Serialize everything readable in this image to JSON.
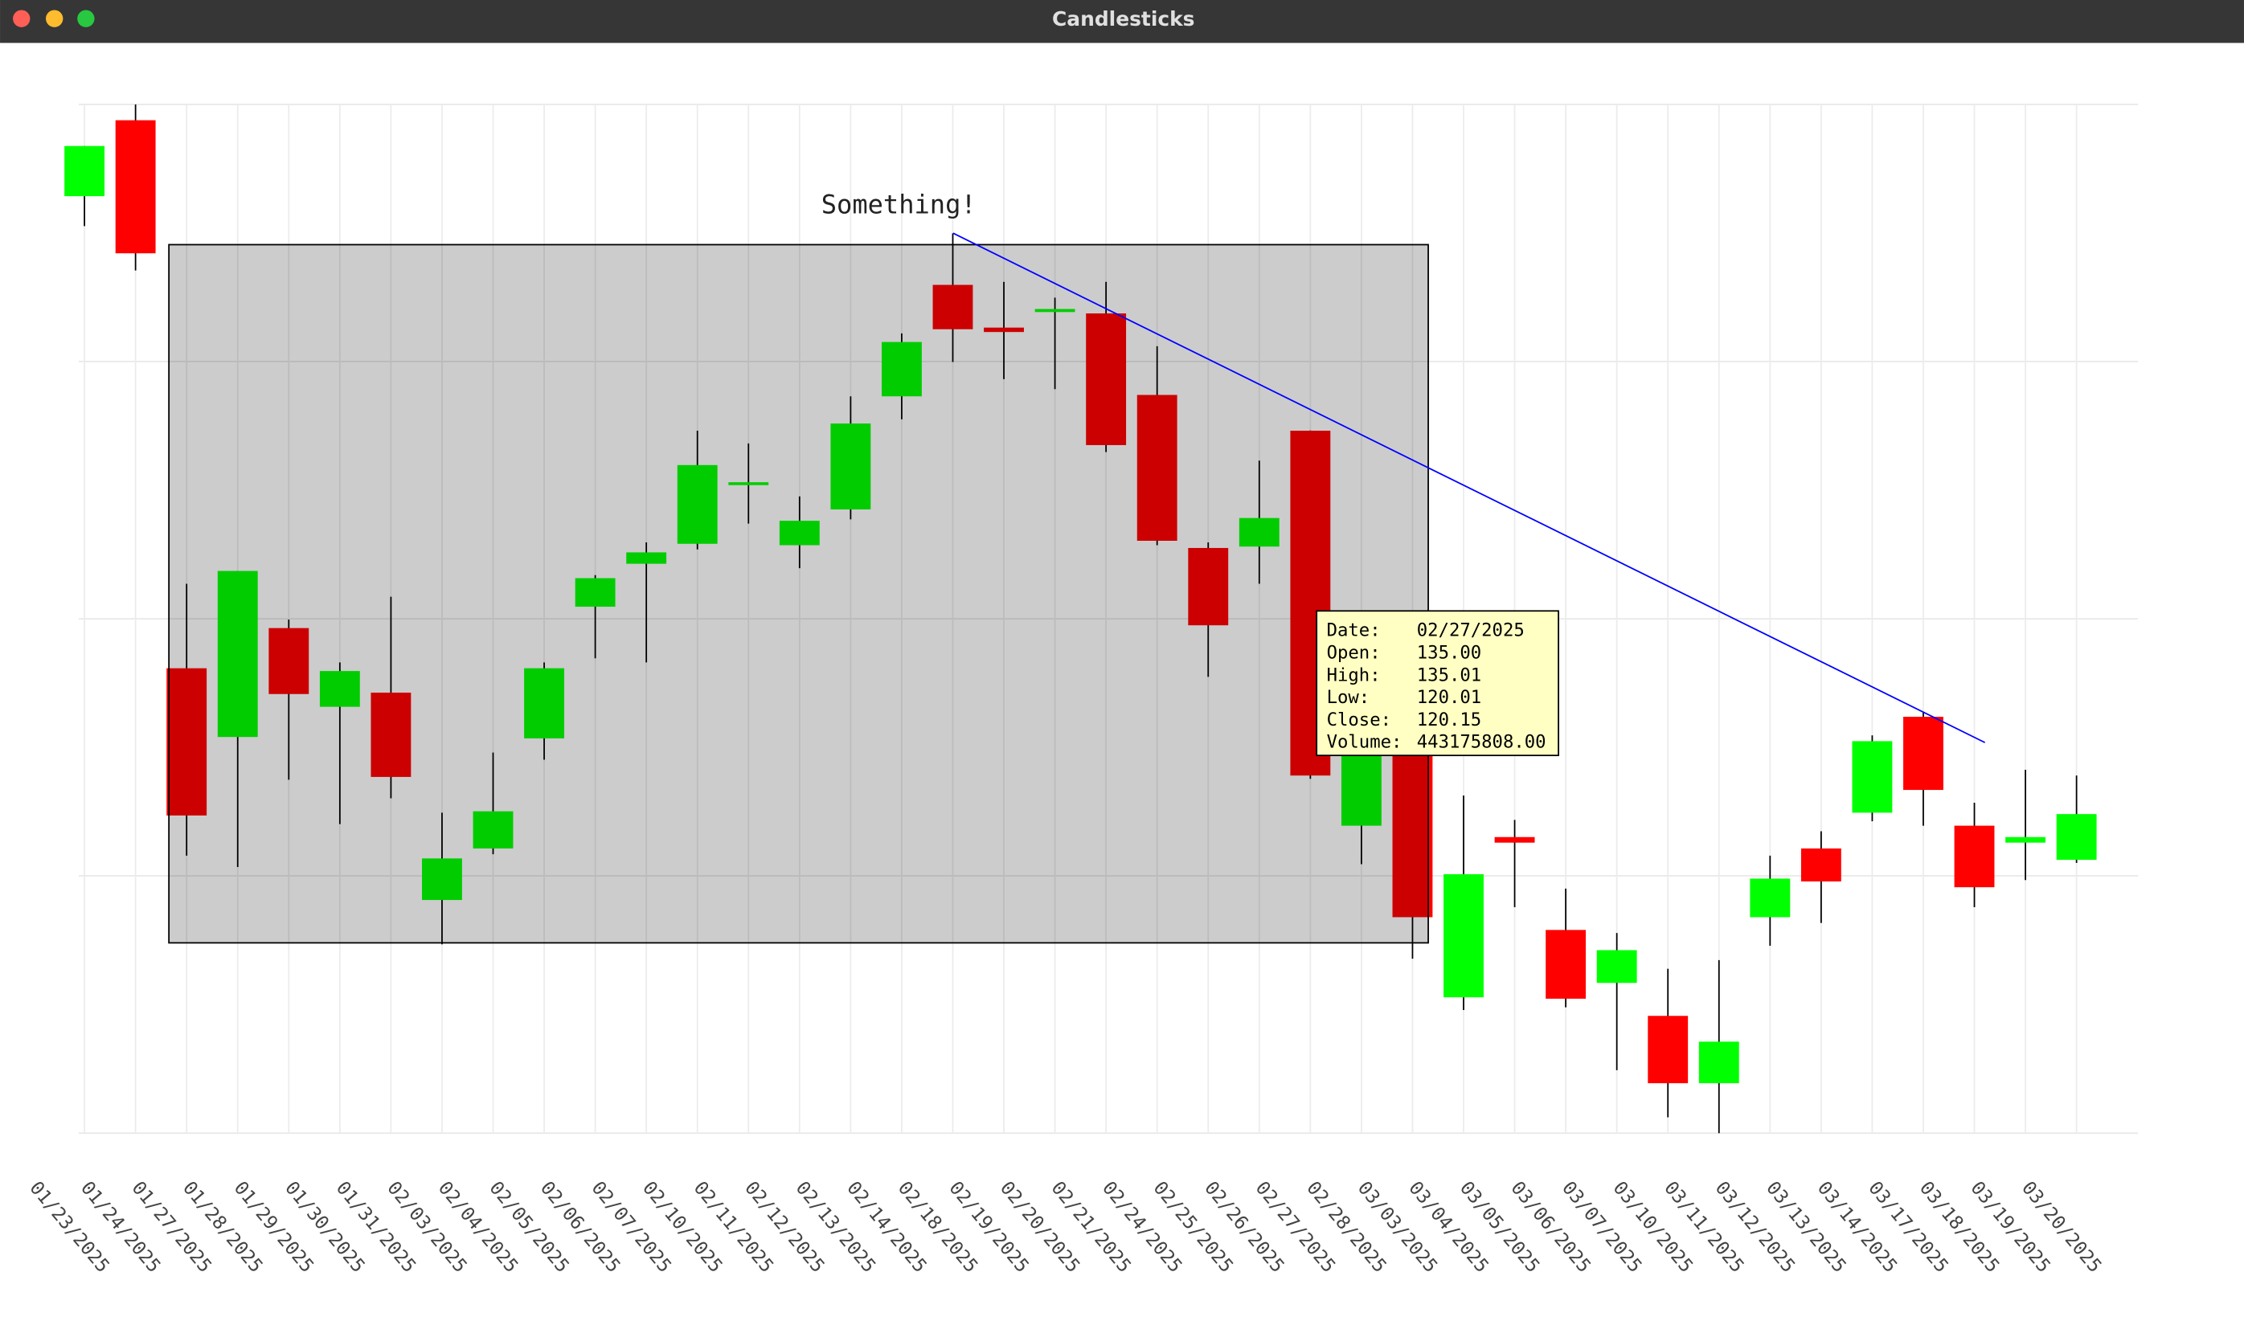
{
  "window": {
    "title": "Candlesticks"
  },
  "chart_data": {
    "type": "candlestick",
    "categories": [
      "01/23/2025",
      "01/24/2025",
      "01/27/2025",
      "01/28/2025",
      "01/29/2025",
      "01/30/2025",
      "01/31/2025",
      "02/03/2025",
      "02/04/2025",
      "02/05/2025",
      "02/06/2025",
      "02/07/2025",
      "02/10/2025",
      "02/11/2025",
      "02/12/2025",
      "02/13/2025",
      "02/14/2025",
      "02/18/2025",
      "02/19/2025",
      "02/20/2025",
      "02/21/2025",
      "02/24/2025",
      "02/25/2025",
      "02/26/2025",
      "02/27/2025",
      "02/28/2025",
      "03/03/2025",
      "03/04/2025",
      "03/05/2025",
      "03/06/2025",
      "03/07/2025",
      "03/10/2025",
      "03/11/2025",
      "03/12/2025",
      "03/13/2025",
      "03/14/2025",
      "03/17/2025",
      "03/18/2025",
      "03/19/2025",
      "03/20/2025"
    ],
    "open": [
      145.1,
      148.37,
      124.77,
      121.81,
      126.5,
      123.11,
      123.72,
      114.79,
      117.01,
      121.75,
      127.42,
      129.27,
      130.13,
      132.66,
      130.07,
      131.61,
      136.48,
      141.28,
      139.44,
      140.11,
      140.05,
      136.54,
      129.95,
      130.01,
      135.0,
      117.99,
      122.74,
      110.6,
      117.5,
      113.5,
      111.22,
      109.8,
      106.9,
      114.05,
      117.01,
      118.55,
      122.68,
      117.99,
      117.26,
      116.52
    ],
    "high": [
      147.26,
      149.05,
      128.41,
      128.96,
      126.87,
      125.02,
      127.85,
      118.55,
      121.14,
      125.02,
      128.78,
      130.19,
      135.0,
      134.45,
      132.17,
      136.48,
      139.19,
      143.5,
      141.41,
      140.73,
      141.41,
      138.64,
      130.19,
      133.71,
      135.01,
      121.5,
      123.0,
      119.29,
      118.24,
      115.28,
      113.37,
      111.83,
      112.2,
      116.7,
      117.75,
      121.88,
      122.86,
      118.98,
      120.4,
      120.15
    ],
    "low": [
      143.81,
      141.9,
      116.7,
      116.21,
      119.97,
      118.06,
      119.17,
      112.88,
      116.76,
      120.83,
      125.2,
      125.02,
      129.89,
      131.0,
      129.08,
      131.18,
      135.49,
      137.96,
      137.22,
      136.79,
      134.08,
      130.07,
      124.4,
      128.41,
      120.01,
      116.33,
      112.26,
      110.05,
      114.48,
      110.17,
      107.46,
      105.43,
      104.75,
      112.82,
      113.8,
      118.18,
      117.99,
      114.48,
      115.65,
      116.39
    ],
    "close": [
      147.26,
      142.64,
      118.43,
      128.96,
      123.66,
      124.65,
      120.09,
      116.58,
      118.61,
      124.77,
      128.65,
      129.76,
      133.52,
      132.78,
      131.12,
      135.31,
      138.82,
      139.37,
      139.25,
      140.24,
      134.38,
      130.26,
      126.62,
      131.24,
      120.15,
      121.38,
      114.05,
      115.9,
      117.26,
      110.54,
      112.63,
      106.9,
      108.69,
      115.71,
      115.59,
      121.63,
      119.53,
      115.34,
      117.5,
      118.49
    ],
    "up_color": "#00ff00",
    "down_color": "#ff0000",
    "ylim": [
      104.75,
      149.05
    ],
    "yticks": [
      104.75,
      115.83,
      126.9,
      137.98,
      149.05
    ],
    "grid": true,
    "annotation": "Something!",
    "tooltip": {
      "rows": [
        [
          "Date:",
          "02/27/2025"
        ],
        [
          "Open:",
          "135.00"
        ],
        [
          "High:",
          "135.01"
        ],
        [
          "Low:",
          "120.01"
        ],
        [
          "Close:",
          "120.15"
        ],
        [
          "Volume:",
          "443175808.00"
        ]
      ]
    }
  }
}
